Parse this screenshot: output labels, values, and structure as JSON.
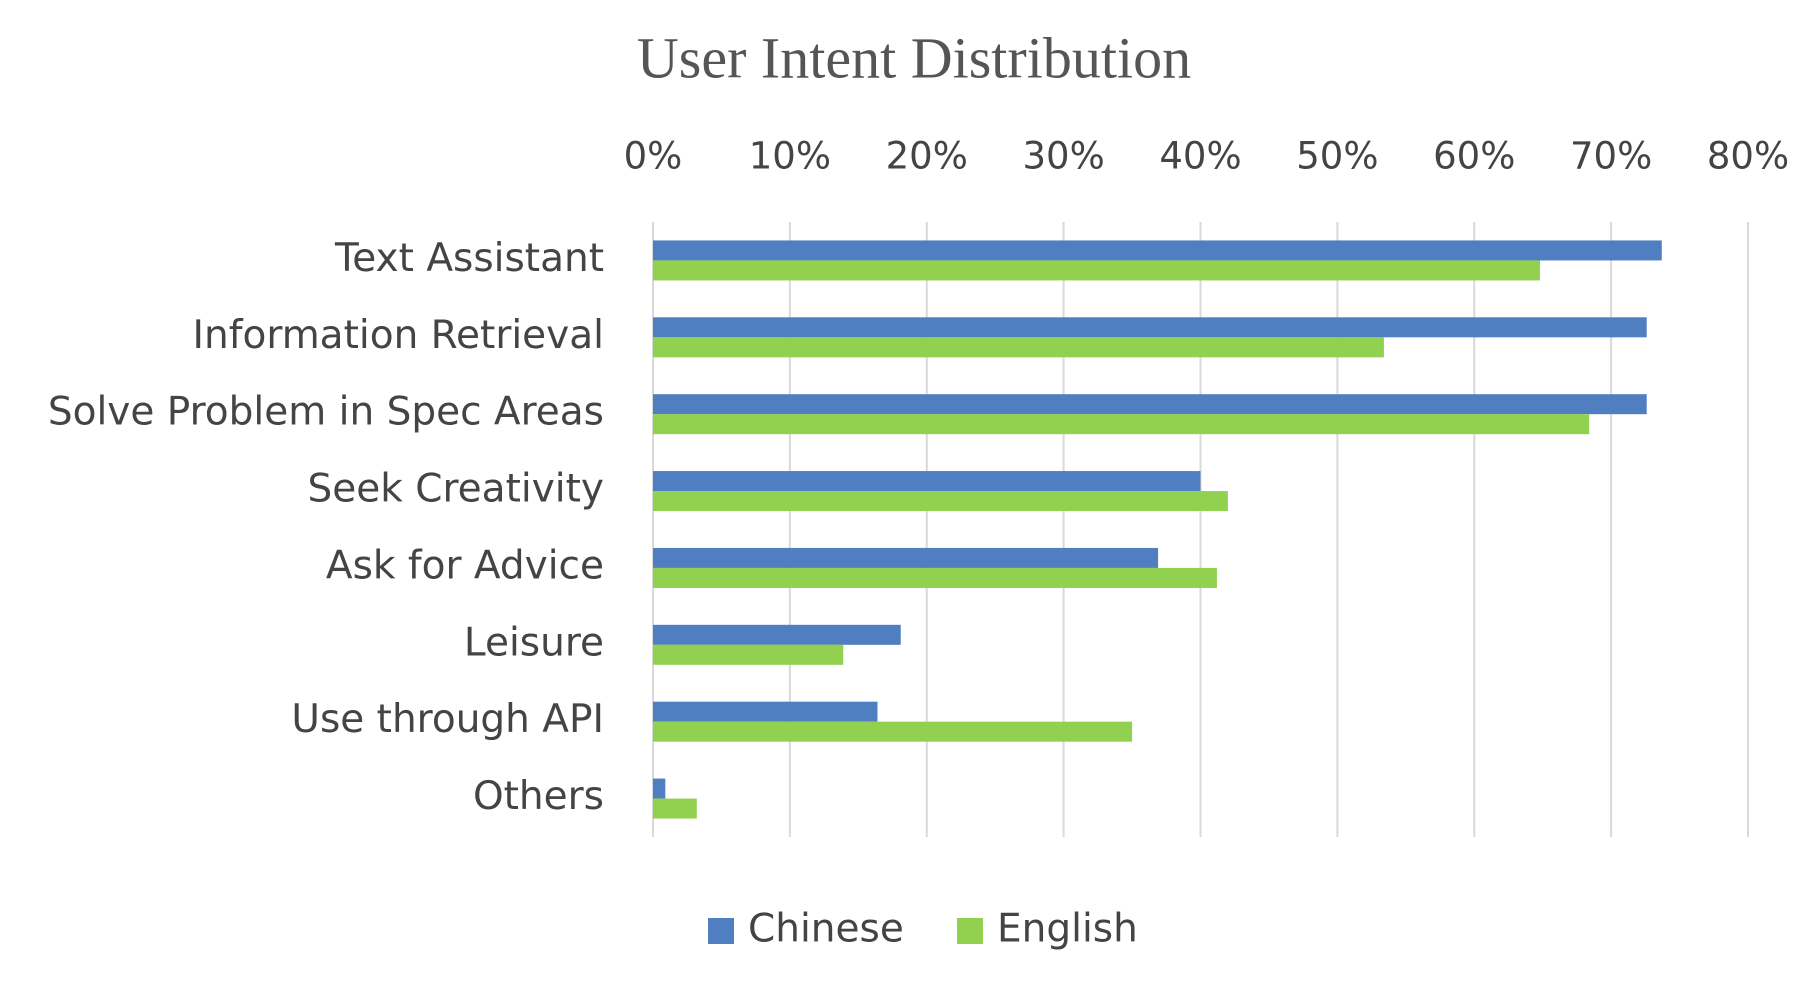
{
  "chart_data": {
    "type": "bar",
    "orientation": "horizontal",
    "title": "User Intent Distribution",
    "categories": [
      "Text Assistant",
      "Information Retrieval",
      "Solve Problem in Spec Areas",
      "Seek Creativity",
      "Ask for Advice",
      "Leisure",
      "Use through API",
      "Others"
    ],
    "series": [
      {
        "name": "Chinese",
        "color": "#4f7fc0",
        "values": [
          73.7,
          72.6,
          72.6,
          40,
          36.9,
          18.1,
          16.4,
          0.9
        ]
      },
      {
        "name": "English",
        "color": "#92d050",
        "values": [
          64.8,
          53.4,
          68.4,
          42,
          41.2,
          13.9,
          35,
          3.2
        ]
      }
    ],
    "xlim": [
      0,
      80
    ],
    "xticks": [
      {
        "value": 0,
        "label": "0%"
      },
      {
        "value": 10,
        "label": "10%"
      },
      {
        "value": 20,
        "label": "20%"
      },
      {
        "value": 30,
        "label": "30%"
      },
      {
        "value": 40,
        "label": "40%"
      },
      {
        "value": 50,
        "label": "50%"
      },
      {
        "value": 60,
        "label": "60%"
      },
      {
        "value": 70,
        "label": "70%"
      },
      {
        "value": 80,
        "label": "80%"
      }
    ],
    "grid": true,
    "legend": "bottom"
  }
}
